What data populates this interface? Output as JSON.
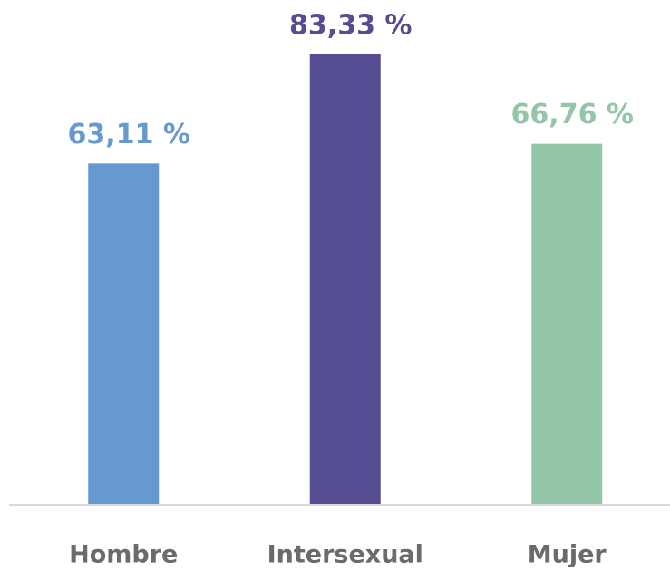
{
  "chart_data": {
    "type": "bar",
    "categories": [
      "Hombre",
      "Intersexual",
      "Mujer"
    ],
    "values": [
      63.11,
      83.33,
      66.76
    ],
    "value_labels": [
      "63,11 %",
      "83,33 %",
      "66,76 %"
    ],
    "colors": [
      "#6699cf",
      "#554d91",
      "#93c6a8"
    ]
  }
}
